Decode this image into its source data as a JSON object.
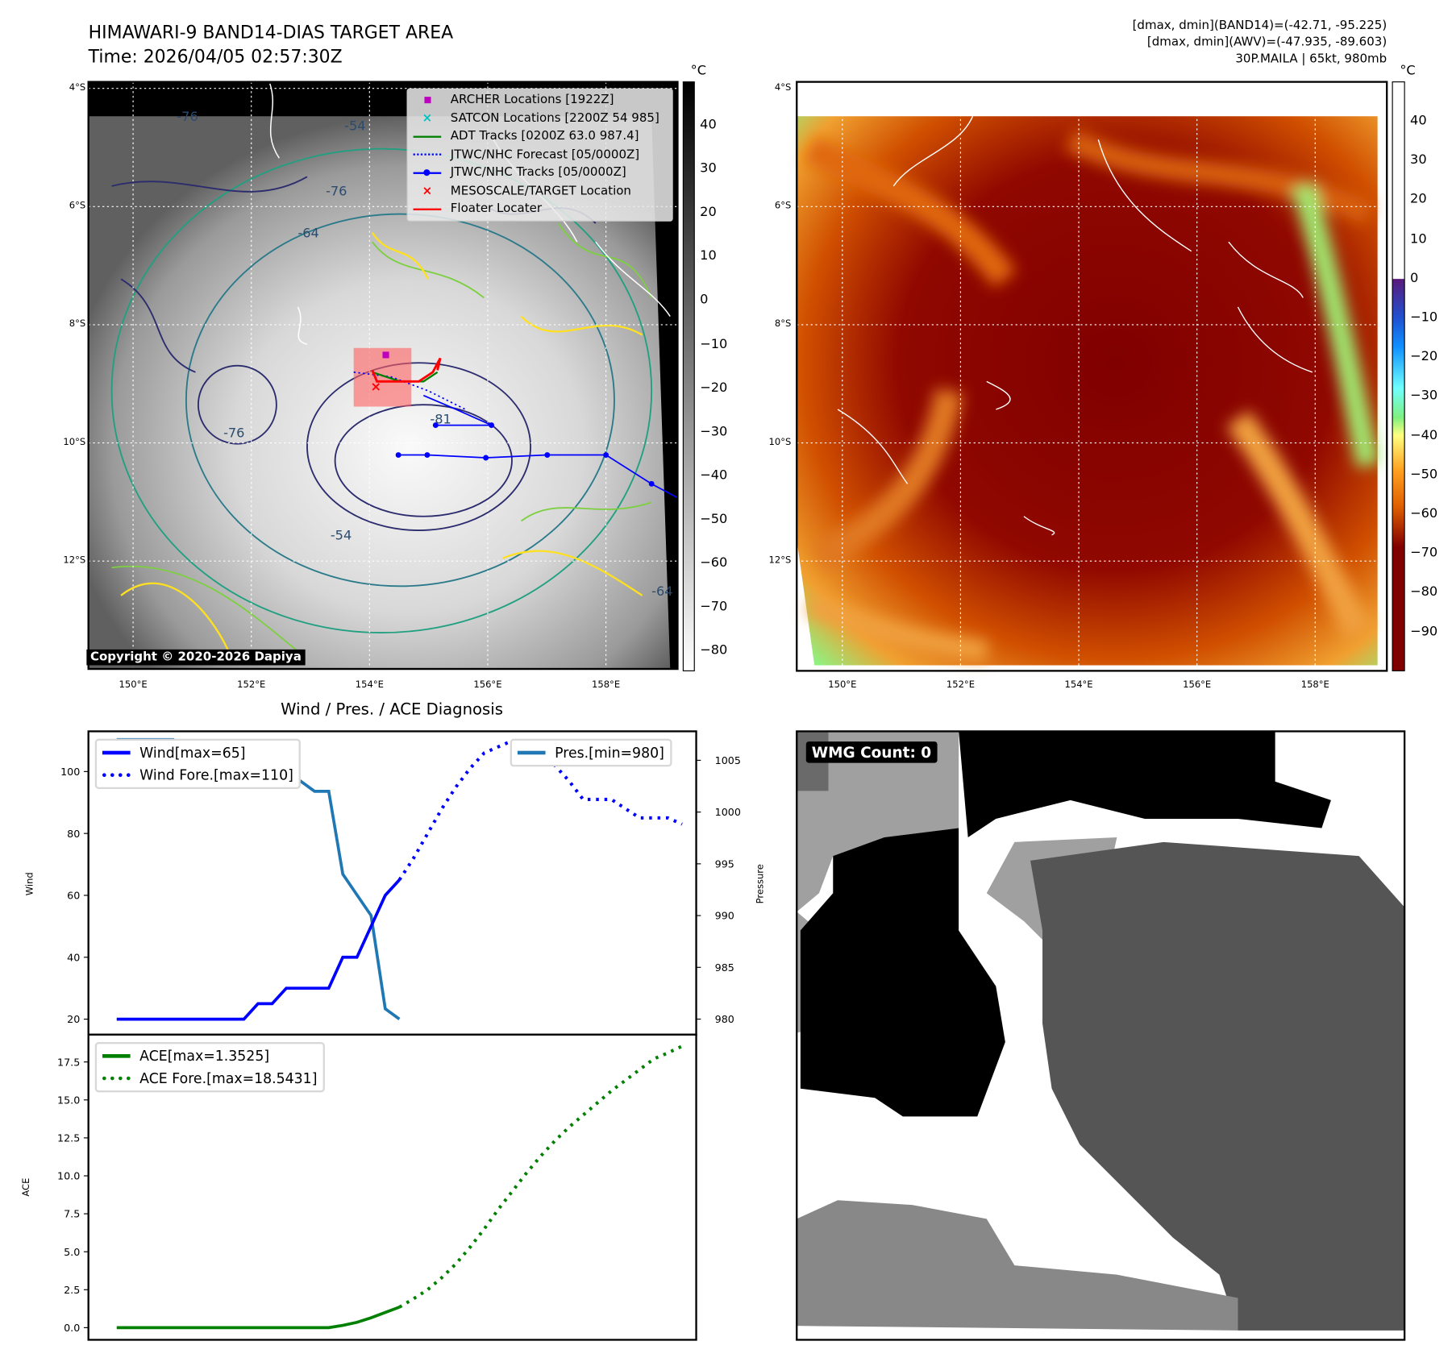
{
  "header": {
    "title": "HIMAWARI-9 BAND14-DIAS TARGET AREA",
    "time": "Time: 2026/04/05 02:57:30Z",
    "info": [
      "[dmax, dmin](BAND14)=(-42.71, -95.225)",
      "[dmax, dmin](AWV)=(-47.935, -89.603)",
      "30P.MAILA | 65kt, 980mb"
    ]
  },
  "maps": {
    "lat_labels": [
      "4°S",
      "6°S",
      "8°S",
      "10°S",
      "12°S"
    ],
    "lon_labels": [
      "150°E",
      "152°E",
      "154°E",
      "156°E",
      "158°E"
    ],
    "unit": "°C",
    "left_colorbar_ticks": [
      "40",
      "30",
      "20",
      "10",
      "0",
      "−10",
      "−20",
      "−30",
      "−40",
      "−50",
      "−60",
      "−70",
      "−80"
    ],
    "right_colorbar_ticks": [
      "40",
      "30",
      "20",
      "10",
      "0",
      "−10",
      "−20",
      "−30",
      "−40",
      "−50",
      "−60",
      "−70",
      "−80",
      "−90"
    ],
    "copyright": "Copyright © 2020-2026 Dapiya",
    "contour_labels": [
      "-76",
      "-54",
      "-64",
      "-76",
      "-81",
      "-76",
      "-54",
      "-64"
    ],
    "legend": [
      {
        "label": "ARCHER Locations [1922Z]",
        "color": "#c000c0",
        "symbol": "square"
      },
      {
        "label": "SATCON Locations [2200Z 54 985]",
        "color": "#00c0c0",
        "symbol": "x"
      },
      {
        "label": "ADT Tracks [0200Z 63.0 987.4]",
        "color": "#008000",
        "symbol": "line"
      },
      {
        "label": "JTWC/NHC Forecast [05/0000Z]",
        "color": "#0000ff",
        "symbol": "dotted"
      },
      {
        "label": "JTWC/NHC Tracks [05/0000Z]",
        "color": "#0000ff",
        "symbol": "line-dot"
      },
      {
        "label": "MESOSCALE/TARGET Location",
        "color": "#ff0000",
        "symbol": "x"
      },
      {
        "label": "Floater Locater",
        "color": "#ff0000",
        "symbol": "line"
      }
    ]
  },
  "wmg": {
    "label": "WMG Count: 0"
  },
  "chart_data": [
    {
      "type": "line",
      "title": "Wind / Pres. / ACE Diagnosis",
      "ylabel": "Wind",
      "y2label": "Pressure",
      "ylim": [
        15,
        113
      ],
      "y2lim": [
        978.5,
        1007.8
      ],
      "yticks": [
        "20",
        "40",
        "60",
        "80",
        "100"
      ],
      "y2ticks": [
        "980",
        "985",
        "990",
        "995",
        "1000",
        "1005"
      ],
      "xlim": [
        -2,
        41
      ],
      "series": [
        {
          "name": "Wind[max=65]",
          "color": "#0000ff",
          "style": "solid",
          "x0": 0,
          "values": [
            20,
            20,
            20,
            20,
            20,
            20,
            20,
            20,
            20,
            20,
            25,
            25,
            30,
            30,
            30,
            30,
            40,
            40,
            50,
            60,
            65
          ]
        },
        {
          "name": "Wind Fore.[max=110]",
          "color": "#0000ff",
          "style": "dotted",
          "x0": 20,
          "values": [
            65,
            72,
            80,
            88,
            95,
            101,
            106,
            108,
            110,
            105,
            105,
            102,
            97,
            91,
            91,
            91,
            88,
            85,
            85,
            85,
            83
          ]
        },
        {
          "name": "Pres.[min=980]",
          "color": "#1f77b4",
          "style": "solid",
          "axis": "right",
          "x0": 0,
          "values": [
            1007,
            1007,
            1007,
            1007,
            1007,
            1005,
            1005,
            1005,
            1005,
            1005,
            1003,
            1003,
            1003,
            1003,
            1002,
            1002,
            994,
            992,
            990,
            981,
            980
          ]
        }
      ]
    },
    {
      "type": "line",
      "ylabel": "ACE",
      "ylim": [
        -0.8,
        19.3
      ],
      "yticks": [
        "0.0",
        "2.5",
        "5.0",
        "7.5",
        "10.0",
        "12.5",
        "15.0",
        "17.5"
      ],
      "xlim": [
        -2,
        41
      ],
      "series": [
        {
          "name": "ACE[max=1.3525]",
          "color": "#008000",
          "style": "solid",
          "x0": 0,
          "values": [
            0,
            0,
            0,
            0,
            0,
            0,
            0,
            0,
            0,
            0,
            0,
            0,
            0,
            0,
            0,
            0,
            0.15,
            0.35,
            0.65,
            1.0,
            1.35
          ]
        },
        {
          "name": "ACE Fore.[max=18.5431]",
          "color": "#008000",
          "style": "dotted",
          "x0": 20,
          "values": [
            1.35,
            1.9,
            2.5,
            3.3,
            4.2,
            5.3,
            6.5,
            7.8,
            9.0,
            10.2,
            11.3,
            12.3,
            13.2,
            14.0,
            14.8,
            15.6,
            16.3,
            17.0,
            17.7,
            18.1,
            18.54
          ]
        }
      ]
    }
  ]
}
